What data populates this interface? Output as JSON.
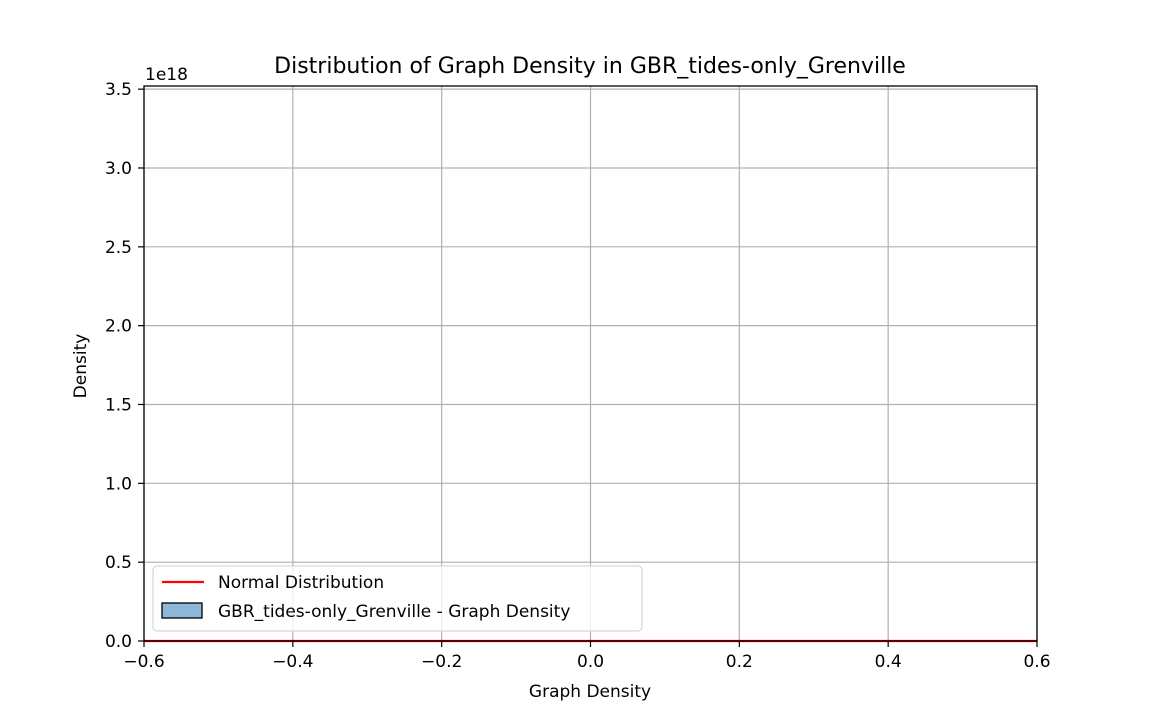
{
  "chart_data": {
    "type": "bar",
    "title": "Distribution of Graph Density in GBR_tides-only_Grenville",
    "xlabel": "Graph Density",
    "ylabel": "Density",
    "y_offset_label": "1e18",
    "xlim": [
      -0.6,
      0.6
    ],
    "ylim": [
      0,
      3.52
    ],
    "x_ticks": [
      -0.6,
      -0.4,
      -0.2,
      0.0,
      0.2,
      0.4,
      0.6
    ],
    "x_tick_labels": [
      "−0.6",
      "−0.4",
      "−0.2",
      "0.0",
      "0.2",
      "0.4",
      "0.6"
    ],
    "y_ticks": [
      0.0,
      0.5,
      1.0,
      1.5,
      2.0,
      2.5,
      3.0,
      3.5
    ],
    "y_tick_labels": [
      "0.0",
      "0.5",
      "1.0",
      "1.5",
      "2.0",
      "2.5",
      "3.0",
      "3.5"
    ],
    "grid": true,
    "legend_position": "lower-left",
    "series": [
      {
        "name": "Normal Distribution",
        "kind": "line",
        "color": "#ff0000",
        "x": [
          -0.6,
          0.6
        ],
        "values": [
          0,
          0
        ]
      },
      {
        "name": "GBR_tides-only_Grenville - Graph Density",
        "kind": "histogram",
        "color": "#8fb8d8",
        "edgecolor": "#000000",
        "bins": [],
        "values": []
      }
    ]
  }
}
